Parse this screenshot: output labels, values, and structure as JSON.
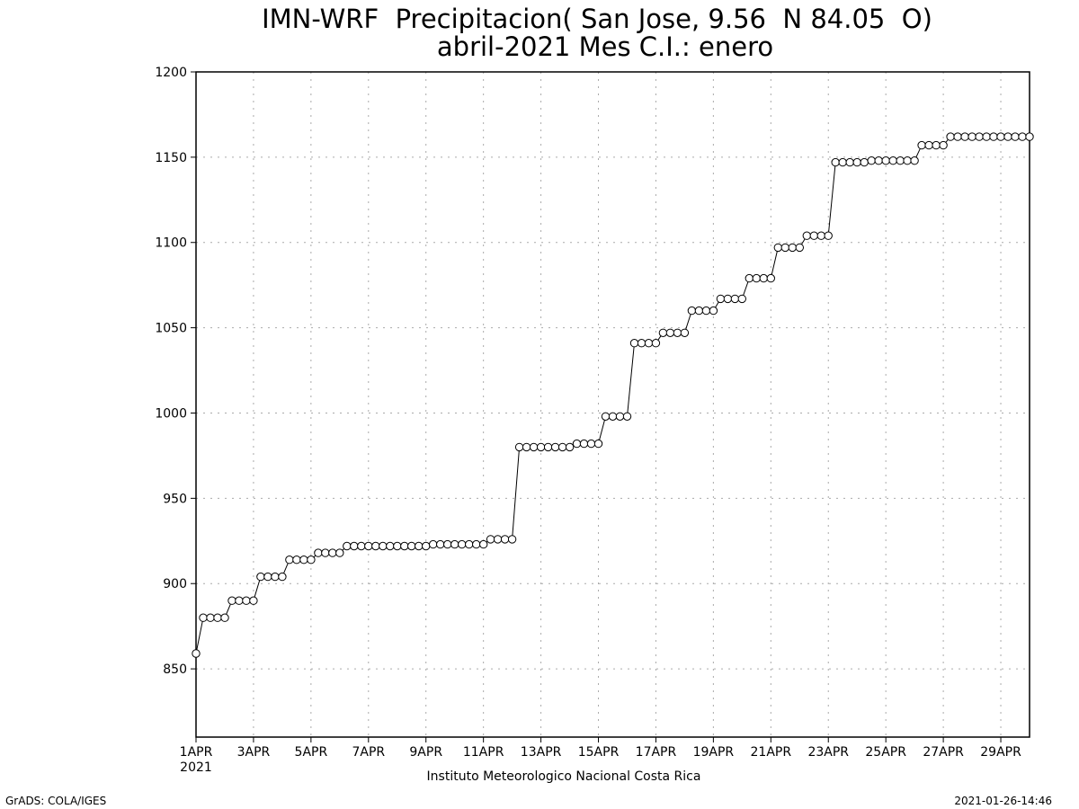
{
  "chart_data": {
    "type": "line",
    "title": "IMN-WRF  Precipitacion( San Jose, 9.56  N 84.05  O)",
    "subtitle": "abril-2021 Mes C.I.: enero",
    "xlabel": "",
    "ylabel": "",
    "footer_institution": "Instituto Meteorologico Nacional Costa Rica",
    "footer_left": "GrADS: COLA/IGES",
    "footer_right": "2021-01-26-14:46",
    "x_year_label": "2021",
    "ylim": [
      810,
      1200
    ],
    "yticks": [
      850,
      900,
      950,
      1000,
      1050,
      1100,
      1150,
      1200
    ],
    "xlim_days": [
      1,
      30
    ],
    "xticks": [
      {
        "day": 1,
        "label": "1APR"
      },
      {
        "day": 3,
        "label": "3APR"
      },
      {
        "day": 5,
        "label": "5APR"
      },
      {
        "day": 7,
        "label": "7APR"
      },
      {
        "day": 9,
        "label": "9APR"
      },
      {
        "day": 11,
        "label": "11APR"
      },
      {
        "day": 13,
        "label": "13APR"
      },
      {
        "day": 15,
        "label": "15APR"
      },
      {
        "day": 17,
        "label": "17APR"
      },
      {
        "day": 19,
        "label": "19APR"
      },
      {
        "day": 21,
        "label": "21APR"
      },
      {
        "day": 23,
        "label": "23APR"
      },
      {
        "day": 25,
        "label": "25APR"
      },
      {
        "day": 27,
        "label": "27APR"
      },
      {
        "day": 29,
        "label": "29APR"
      }
    ],
    "grid": true,
    "marker": "open-circle",
    "series": [
      {
        "points_per_day": 4,
        "values": [
          859,
          880,
          880,
          880,
          880,
          890,
          890,
          890,
          890,
          904,
          904,
          904,
          904,
          914,
          914,
          914,
          914,
          918,
          918,
          918,
          918,
          922,
          922,
          922,
          922,
          922,
          922,
          922,
          922,
          922,
          922,
          922,
          922,
          923,
          923,
          923,
          923,
          923,
          923,
          923,
          923,
          926,
          926,
          926,
          926,
          980,
          980,
          980,
          980,
          980,
          980,
          980,
          980,
          982,
          982,
          982,
          982,
          998,
          998,
          998,
          998,
          1041,
          1041,
          1041,
          1041,
          1047,
          1047,
          1047,
          1047,
          1060,
          1060,
          1060,
          1060,
          1067,
          1067,
          1067,
          1067,
          1079,
          1079,
          1079,
          1079,
          1097,
          1097,
          1097,
          1097,
          1104,
          1104,
          1104,
          1104,
          1147,
          1147,
          1147,
          1147,
          1147,
          1148,
          1148,
          1148,
          1148,
          1148,
          1148,
          1148,
          1157,
          1157,
          1157,
          1157,
          1162,
          1162,
          1162,
          1162,
          1162,
          1162,
          1162,
          1162,
          1162,
          1162,
          1162,
          1162
        ]
      }
    ]
  }
}
